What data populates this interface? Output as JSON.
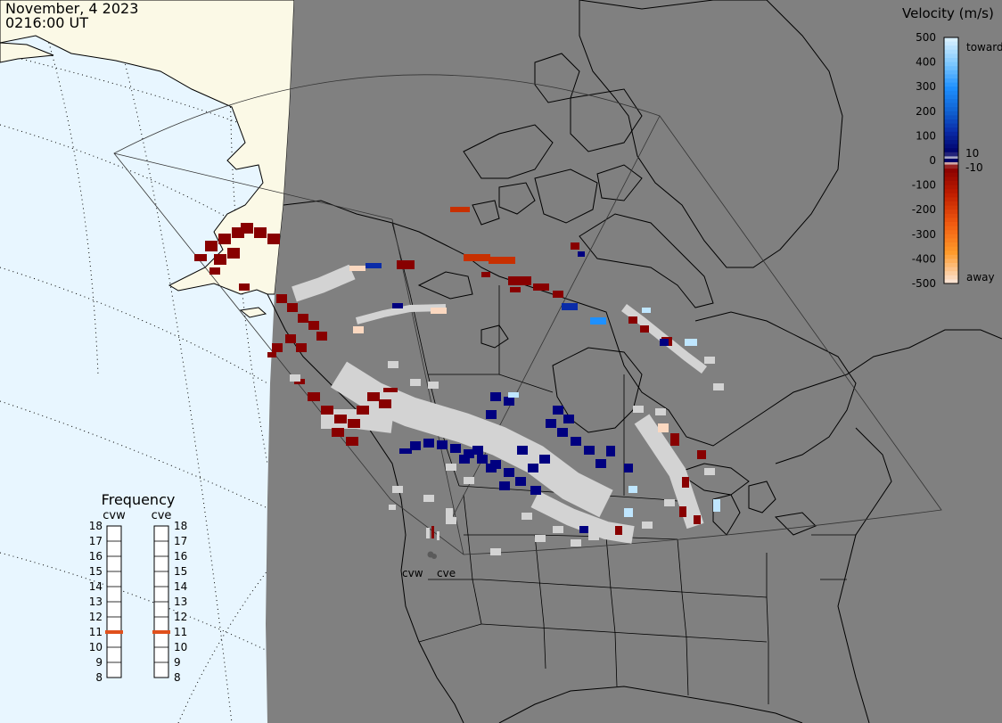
{
  "header": {
    "date": "November, 4 2023",
    "time": "0216:00 UT"
  },
  "colorbar": {
    "title": "Velocity (m/s)",
    "ticks": [
      "500",
      "400",
      "300",
      "200",
      "100",
      "10",
      "0",
      "-10",
      "-100",
      "-200",
      "-300",
      "-400",
      "-500"
    ],
    "toward_label": "toward",
    "away_label": "away",
    "colors": [
      "#fbe2d0",
      "#ff9a2a",
      "#f05a10",
      "#c01e00",
      "#880000",
      "#e8e8e8",
      "#000066",
      "#0a2ca8",
      "#1060d0",
      "#1e90ff",
      "#7ec8ff",
      "#d8f0ff"
    ]
  },
  "frequency_panel": {
    "title": "Frequency",
    "radars": [
      "cvw",
      "cve"
    ],
    "ticks": [
      "18",
      "17",
      "16",
      "15",
      "14",
      "13",
      "12",
      "11",
      "10",
      "9",
      "8"
    ],
    "cvw_frequency_mhz": 11,
    "cve_frequency_mhz": 11,
    "marker_color": "#e0501c"
  },
  "radar_sites": {
    "cvw_label": "cvw",
    "cve_label": "cve"
  },
  "colors": {
    "ocean": "#e8f6ff",
    "land_lit": "#fbf9e6",
    "night_shade": "#808080",
    "ground_scatter": "#d3d3d3",
    "coastline": "#000000"
  }
}
